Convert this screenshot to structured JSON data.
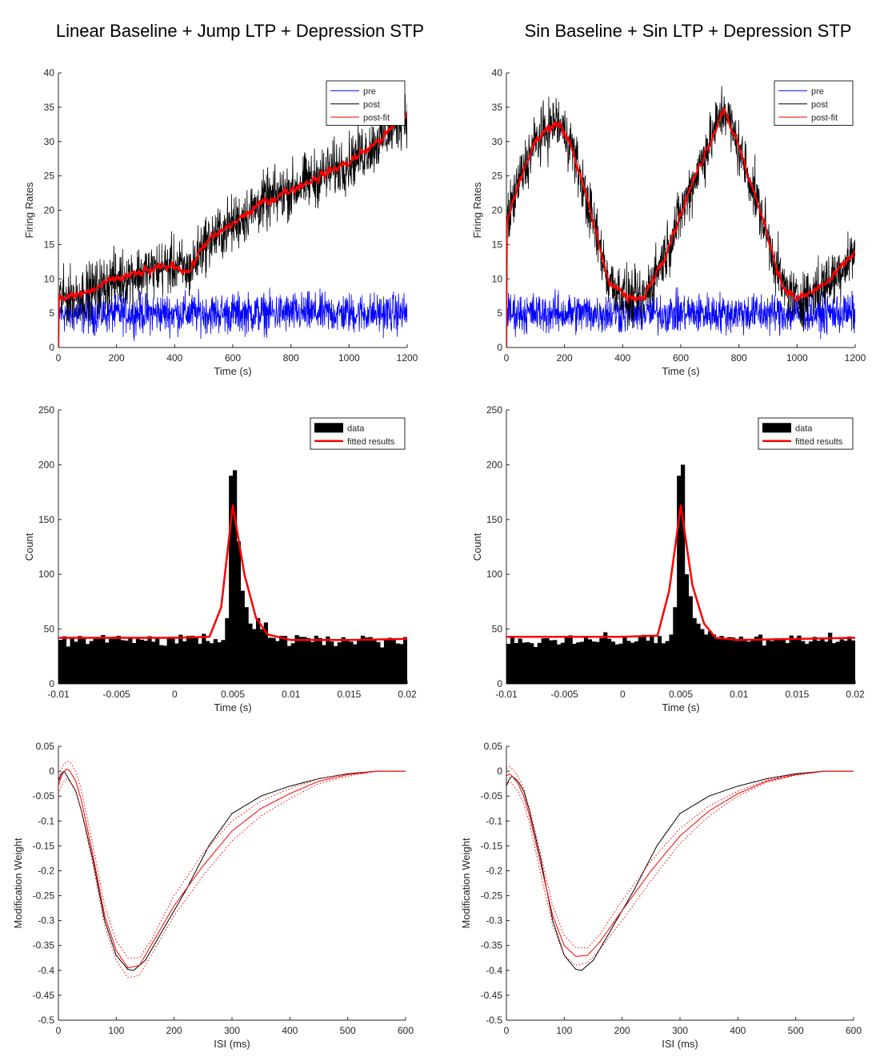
{
  "titles": {
    "left": "Linear Baseline + Jump LTP  + Depression STP",
    "right": "Sin Baseline + Sin LTP  + Depression STP"
  },
  "colors": {
    "pre": "#0000ff",
    "post": "#000000",
    "fit": "#ff0000",
    "hist": "#000000"
  },
  "chart_data": [
    {
      "id": "rates-left",
      "type": "line",
      "xlabel": "Time (s)",
      "ylabel": "Firing Rates",
      "xlim": [
        0,
        1200
      ],
      "ylim": [
        0,
        40
      ],
      "xticks": [
        0,
        200,
        400,
        600,
        800,
        1000,
        1200
      ],
      "yticks": [
        0,
        5,
        10,
        15,
        20,
        25,
        30,
        35,
        40
      ],
      "legend": {
        "placement": "top-right",
        "entries": [
          "pre",
          "post",
          "post-fit"
        ]
      },
      "series": [
        {
          "name": "pre",
          "x": [
            0,
            100,
            200,
            300,
            400,
            500,
            600,
            700,
            800,
            900,
            1000,
            1100,
            1200
          ],
          "y": [
            5,
            5,
            5,
            5,
            5,
            5,
            5,
            5,
            5,
            5,
            5,
            5,
            5
          ],
          "noise": 2.5
        },
        {
          "name": "post",
          "x": [
            0,
            100,
            200,
            300,
            400,
            450,
            500,
            600,
            700,
            800,
            900,
            1000,
            1100,
            1200
          ],
          "y": [
            7,
            8,
            10,
            11,
            12,
            11,
            15,
            18,
            21,
            23,
            25,
            27,
            30,
            34
          ],
          "noise": 3.5
        },
        {
          "name": "post-fit",
          "x": [
            0,
            100,
            200,
            300,
            400,
            450,
            500,
            600,
            700,
            800,
            900,
            1000,
            1100,
            1200
          ],
          "y": [
            7,
            8,
            10,
            11,
            12,
            11,
            15,
            18,
            21,
            23,
            25,
            27,
            30,
            34
          ],
          "noise": 0.8
        }
      ]
    },
    {
      "id": "rates-right",
      "type": "line",
      "xlabel": "Time (s)",
      "ylabel": "Firing Rates",
      "xlim": [
        0,
        1200
      ],
      "ylim": [
        0,
        40
      ],
      "xticks": [
        0,
        200,
        400,
        600,
        800,
        1000,
        1200
      ],
      "yticks": [
        0,
        5,
        10,
        15,
        20,
        25,
        30,
        35,
        40
      ],
      "legend": {
        "placement": "top-right",
        "entries": [
          "pre",
          "post",
          "post-fit"
        ]
      },
      "series": [
        {
          "name": "pre",
          "x": [
            0,
            100,
            200,
            300,
            400,
            500,
            600,
            700,
            800,
            900,
            1000,
            1100,
            1200
          ],
          "y": [
            5,
            5,
            5,
            5,
            5,
            5,
            5,
            5,
            5,
            5,
            5,
            5,
            5
          ],
          "noise": 2.5
        },
        {
          "name": "post",
          "x": [
            0,
            50,
            100,
            170,
            220,
            300,
            350,
            420,
            470,
            550,
            650,
            750,
            850,
            950,
            1000,
            1050,
            1120,
            1200
          ],
          "y": [
            18,
            25,
            30,
            33,
            30,
            18,
            10,
            7,
            7,
            14,
            25,
            35,
            23,
            9,
            7,
            8,
            10,
            14
          ],
          "noise": 3.5
        },
        {
          "name": "post-fit",
          "x": [
            0,
            50,
            100,
            170,
            220,
            300,
            350,
            420,
            470,
            550,
            650,
            750,
            850,
            950,
            1000,
            1050,
            1120,
            1200
          ],
          "y": [
            18,
            25,
            30,
            33,
            30,
            18,
            10,
            7,
            7,
            14,
            25,
            35,
            23,
            9,
            7,
            8,
            10,
            14
          ],
          "noise": 0.8
        }
      ]
    },
    {
      "id": "hist-left",
      "type": "bar",
      "xlabel": "Time (s)",
      "ylabel": "Count",
      "xlim": [
        -0.01,
        0.02
      ],
      "ylim": [
        0,
        250
      ],
      "xticks": [
        -0.01,
        -0.005,
        0,
        0.005,
        0.01,
        0.015,
        0.02
      ],
      "xticklabels": [
        "-0.01",
        "-0.005",
        "0",
        "0.005",
        "0.01",
        "0.015",
        "0.02"
      ],
      "yticks": [
        0,
        50,
        100,
        150,
        200,
        250
      ],
      "legend": {
        "placement": "top-right",
        "entries": [
          "data",
          "fitted results"
        ]
      },
      "bins": {
        "start": -0.01,
        "width": 0.0003333,
        "baseline": 40,
        "noise": 5,
        "peak": [
          [
            0.004,
            40
          ],
          [
            0.0043,
            60
          ],
          [
            0.0047,
            190
          ],
          [
            0.005,
            195
          ],
          [
            0.0053,
            130
          ],
          [
            0.0057,
            85
          ],
          [
            0.006,
            70
          ],
          [
            0.0063,
            55
          ],
          [
            0.0067,
            50
          ],
          [
            0.007,
            60
          ],
          [
            0.0073,
            50
          ],
          [
            0.0077,
            56
          ]
        ]
      },
      "fit": {
        "x": [
          -0.01,
          -0.005,
          0,
          0.003,
          0.004,
          0.005,
          0.006,
          0.007,
          0.008,
          0.01,
          0.015,
          0.02
        ],
        "y": [
          42,
          42,
          42,
          43,
          70,
          163,
          100,
          60,
          45,
          40,
          40,
          41
        ]
      }
    },
    {
      "id": "hist-right",
      "type": "bar",
      "xlabel": "Time (s)",
      "ylabel": "Count",
      "xlim": [
        -0.01,
        0.02
      ],
      "ylim": [
        0,
        250
      ],
      "xticks": [
        -0.01,
        -0.005,
        0,
        0.005,
        0.01,
        0.015,
        0.02
      ],
      "xticklabels": [
        "-0.01",
        "-0.005",
        "0",
        "0.005",
        "0.01",
        "0.015",
        "0.02"
      ],
      "yticks": [
        0,
        50,
        100,
        150,
        200,
        250
      ],
      "legend": {
        "placement": "top-right",
        "entries": [
          "data",
          "fitted results"
        ]
      },
      "bins": {
        "start": -0.01,
        "width": 0.0003333,
        "baseline": 40,
        "noise": 5,
        "peak": [
          [
            0.004,
            45
          ],
          [
            0.0043,
            70
          ],
          [
            0.0047,
            190
          ],
          [
            0.005,
            200
          ],
          [
            0.0053,
            100
          ],
          [
            0.0057,
            80
          ],
          [
            0.006,
            60
          ],
          [
            0.0063,
            55
          ],
          [
            0.0067,
            50
          ],
          [
            0.007,
            45
          ],
          [
            0.0073,
            48
          ],
          [
            0.0077,
            45
          ]
        ]
      },
      "fit": {
        "x": [
          -0.01,
          -0.005,
          0,
          0.003,
          0.004,
          0.005,
          0.006,
          0.007,
          0.008,
          0.01,
          0.015,
          0.02
        ],
        "y": [
          43,
          43,
          43,
          44,
          85,
          163,
          90,
          55,
          42,
          40,
          41,
          42
        ]
      }
    },
    {
      "id": "weight-left",
      "type": "line",
      "xlabel": "ISI (ms)",
      "ylabel": "Modification Weight",
      "xlim": [
        0,
        600
      ],
      "ylim": [
        -0.5,
        0.05
      ],
      "xticks": [
        0,
        100,
        200,
        300,
        400,
        500,
        600
      ],
      "yticks": [
        -0.5,
        -0.45,
        -0.4,
        -0.35,
        -0.3,
        -0.25,
        -0.2,
        -0.15,
        -0.1,
        -0.05,
        0,
        0.05
      ],
      "yticklabels": [
        "-0.5",
        "-0.45",
        "-0.4",
        "-0.35",
        "-0.3",
        "-0.25",
        "-0.2",
        "-0.15",
        "-0.1",
        "-0.05",
        "0",
        "0.05"
      ],
      "series": [
        {
          "name": "true",
          "style": "solid",
          "color": "#000000",
          "x": [
            0,
            5,
            10,
            20,
            30,
            40,
            60,
            80,
            100,
            120,
            130,
            150,
            180,
            220,
            260,
            300,
            350,
            400,
            450,
            500,
            550,
            600
          ],
          "y": [
            -0.02,
            -0.005,
            0,
            -0.02,
            -0.04,
            -0.08,
            -0.18,
            -0.3,
            -0.37,
            -0.398,
            -0.4,
            -0.38,
            -0.32,
            -0.24,
            -0.15,
            -0.085,
            -0.05,
            -0.03,
            -0.015,
            -0.005,
            0,
            0
          ]
        },
        {
          "name": "fit",
          "style": "solid",
          "color": "#ff0000",
          "x": [
            0,
            5,
            10,
            15,
            20,
            30,
            40,
            60,
            80,
            100,
            120,
            140,
            160,
            200,
            250,
            300,
            350,
            400,
            450,
            500,
            550,
            600
          ],
          "y": [
            -0.03,
            -0.01,
            0,
            0.005,
            0,
            -0.02,
            -0.06,
            -0.17,
            -0.29,
            -0.36,
            -0.395,
            -0.39,
            -0.35,
            -0.27,
            -0.19,
            -0.12,
            -0.075,
            -0.045,
            -0.02,
            -0.007,
            0,
            0
          ]
        },
        {
          "name": "fit-upper",
          "style": "dotted",
          "color": "#ff0000",
          "x": [
            0,
            5,
            10,
            15,
            20,
            30,
            40,
            60,
            80,
            100,
            120,
            140,
            160,
            200,
            250,
            300,
            350,
            400,
            450,
            500,
            550,
            600
          ],
          "y": [
            -0.02,
            0.005,
            0.015,
            0.02,
            0.018,
            0,
            -0.04,
            -0.15,
            -0.27,
            -0.34,
            -0.375,
            -0.375,
            -0.34,
            -0.25,
            -0.165,
            -0.1,
            -0.06,
            -0.035,
            -0.015,
            -0.005,
            0,
            0
          ]
        },
        {
          "name": "fit-lower",
          "style": "dotted",
          "color": "#ff0000",
          "x": [
            0,
            5,
            10,
            15,
            20,
            30,
            40,
            60,
            80,
            100,
            120,
            140,
            160,
            200,
            250,
            300,
            350,
            400,
            450,
            500,
            550,
            600
          ],
          "y": [
            -0.045,
            -0.03,
            -0.02,
            -0.015,
            -0.02,
            -0.04,
            -0.08,
            -0.19,
            -0.31,
            -0.38,
            -0.415,
            -0.41,
            -0.37,
            -0.29,
            -0.21,
            -0.14,
            -0.09,
            -0.055,
            -0.025,
            -0.01,
            0,
            0
          ]
        }
      ]
    },
    {
      "id": "weight-right",
      "type": "line",
      "xlabel": "ISI (ms)",
      "ylabel": "Modification Weight",
      "xlim": [
        0,
        600
      ],
      "ylim": [
        -0.5,
        0.05
      ],
      "xticks": [
        0,
        100,
        200,
        300,
        400,
        500,
        600
      ],
      "yticks": [
        -0.5,
        -0.45,
        -0.4,
        -0.35,
        -0.3,
        -0.25,
        -0.2,
        -0.15,
        -0.1,
        -0.05,
        0,
        0.05
      ],
      "yticklabels": [
        "-0.5",
        "-0.45",
        "-0.4",
        "-0.35",
        "-0.3",
        "-0.25",
        "-0.2",
        "-0.15",
        "-0.1",
        "-0.05",
        "0",
        "0.05"
      ],
      "series": [
        {
          "name": "true",
          "style": "solid",
          "color": "#000000",
          "x": [
            0,
            5,
            10,
            20,
            30,
            40,
            60,
            80,
            100,
            120,
            130,
            150,
            180,
            220,
            260,
            300,
            350,
            400,
            450,
            500,
            550,
            600
          ],
          "y": [
            -0.03,
            -0.015,
            -0.01,
            -0.02,
            -0.04,
            -0.08,
            -0.18,
            -0.3,
            -0.37,
            -0.398,
            -0.4,
            -0.38,
            -0.32,
            -0.24,
            -0.15,
            -0.085,
            -0.05,
            -0.03,
            -0.015,
            -0.005,
            0,
            0
          ]
        },
        {
          "name": "fit",
          "style": "solid",
          "color": "#ff0000",
          "x": [
            0,
            5,
            10,
            20,
            30,
            40,
            60,
            80,
            100,
            120,
            140,
            160,
            200,
            250,
            300,
            350,
            400,
            450,
            500,
            550,
            600
          ],
          "y": [
            -0.01,
            -0.005,
            -0.01,
            -0.025,
            -0.05,
            -0.09,
            -0.19,
            -0.29,
            -0.35,
            -0.372,
            -0.37,
            -0.345,
            -0.28,
            -0.2,
            -0.13,
            -0.08,
            -0.045,
            -0.02,
            -0.007,
            0,
            0
          ]
        },
        {
          "name": "fit-upper",
          "style": "dotted",
          "color": "#ff0000",
          "x": [
            0,
            5,
            10,
            20,
            30,
            40,
            60,
            80,
            100,
            120,
            140,
            160,
            200,
            250,
            300,
            350,
            400,
            450,
            500,
            550,
            600
          ],
          "y": [
            0.005,
            0.01,
            0.005,
            -0.01,
            -0.035,
            -0.075,
            -0.17,
            -0.27,
            -0.33,
            -0.355,
            -0.355,
            -0.33,
            -0.26,
            -0.18,
            -0.115,
            -0.07,
            -0.04,
            -0.018,
            -0.006,
            0,
            0
          ]
        },
        {
          "name": "fit-lower",
          "style": "dotted",
          "color": "#ff0000",
          "x": [
            0,
            5,
            10,
            20,
            30,
            40,
            60,
            80,
            100,
            120,
            140,
            160,
            200,
            250,
            300,
            350,
            400,
            450,
            500,
            550,
            600
          ],
          "y": [
            -0.03,
            -0.02,
            -0.025,
            -0.04,
            -0.065,
            -0.105,
            -0.21,
            -0.31,
            -0.37,
            -0.39,
            -0.385,
            -0.36,
            -0.3,
            -0.22,
            -0.145,
            -0.09,
            -0.05,
            -0.022,
            -0.008,
            0,
            0
          ]
        }
      ]
    }
  ]
}
